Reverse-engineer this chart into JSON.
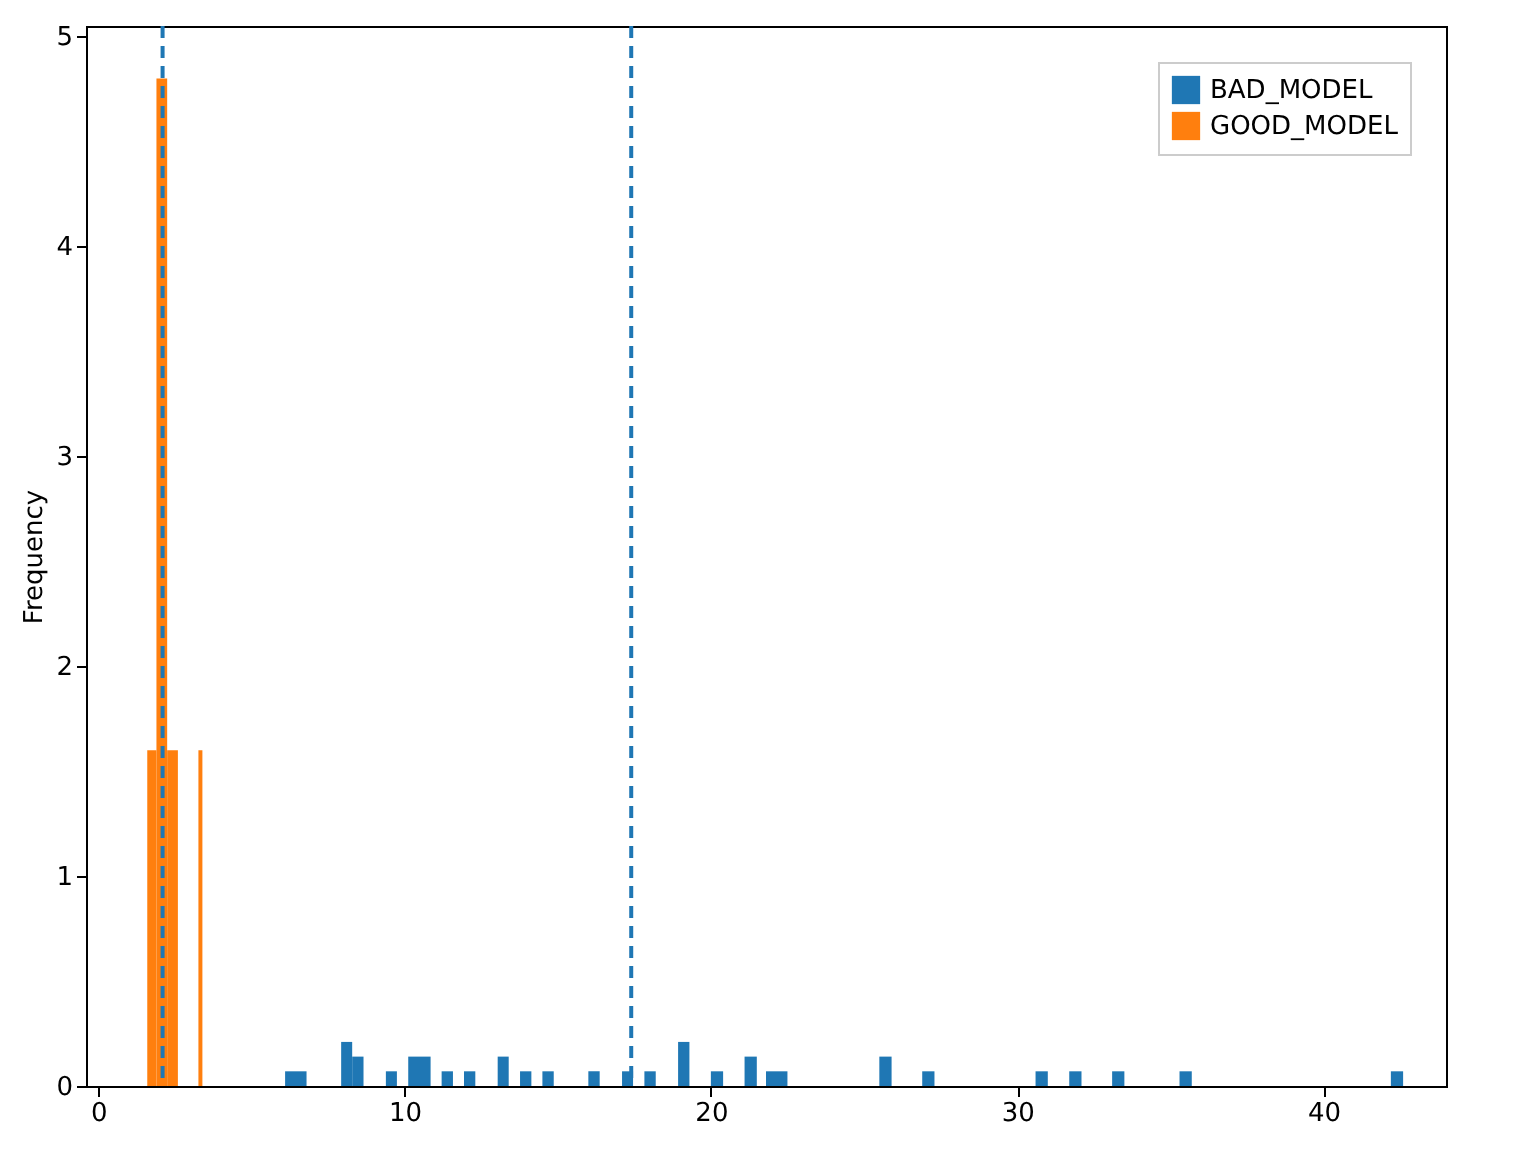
{
  "chart_data": {
    "type": "histogram",
    "ylabel": "Frequency",
    "bins": [
      1.6,
      1.9,
      2.25,
      2.6,
      3.27,
      3.4,
      6.1,
      6.8,
      7.93,
      8.29,
      8.66,
      9.39,
      9.75,
      10.12,
      10.85,
      11.21,
      11.58,
      11.94,
      12.31,
      13.04,
      13.4,
      13.77,
      14.14,
      14.5,
      14.87,
      16.0,
      16.37,
      17.1,
      17.46,
      17.83,
      18.2,
      18.93,
      19.3,
      20.0,
      20.4,
      21.1,
      21.5,
      21.8,
      22.5,
      25.5,
      25.9,
      26.9,
      27.3,
      30.6,
      31.0,
      31.7,
      32.1,
      33.1,
      33.5,
      35.3,
      35.7,
      42.2,
      42.6
    ],
    "series": [
      {
        "name": "BAD_MODEL",
        "color": "#1f77b4",
        "values": [
          0,
          0,
          0,
          0,
          0,
          0,
          0.07,
          0,
          0.21,
          0.14,
          0,
          0.07,
          0,
          0.14,
          0,
          0.07,
          0,
          0.07,
          0,
          0.14,
          0,
          0.07,
          0,
          0.07,
          0,
          0.07,
          0,
          0.07,
          0,
          0.07,
          0,
          0.21,
          0,
          0.07,
          0,
          0.14,
          0,
          0.07,
          0,
          0.14,
          0,
          0.07,
          0,
          0.07,
          0,
          0.07,
          0,
          0.07,
          0,
          0.07,
          0,
          0.07
        ]
      },
      {
        "name": "GOOD_MODEL",
        "color": "#ff7f0e",
        "values": [
          1.6,
          4.8,
          1.6,
          0,
          1.6,
          0,
          0,
          0,
          0,
          0,
          0,
          0,
          0,
          0,
          0,
          0,
          0,
          0,
          0,
          0,
          0,
          0,
          0,
          0,
          0,
          0,
          0,
          0,
          0,
          0,
          0,
          0,
          0,
          0,
          0,
          0,
          0,
          0,
          0,
          0,
          0,
          0,
          0,
          0,
          0,
          0,
          0,
          0,
          0,
          0,
          0,
          0
        ]
      }
    ],
    "ref_lines": [
      {
        "axis": "x",
        "value": 2.1,
        "color": "#1f77b4",
        "line_style": "dashed"
      },
      {
        "axis": "x",
        "value": 17.4,
        "color": "#1f77b4",
        "line_style": "dashed"
      }
    ],
    "xlim": [
      -0.4,
      44.0
    ],
    "xticks": [
      0,
      10,
      20,
      30,
      40
    ],
    "ylim": [
      0,
      5.05
    ],
    "yticks": [
      0,
      1,
      2,
      3,
      4,
      5
    ],
    "grid": false,
    "legend": "top right"
  }
}
